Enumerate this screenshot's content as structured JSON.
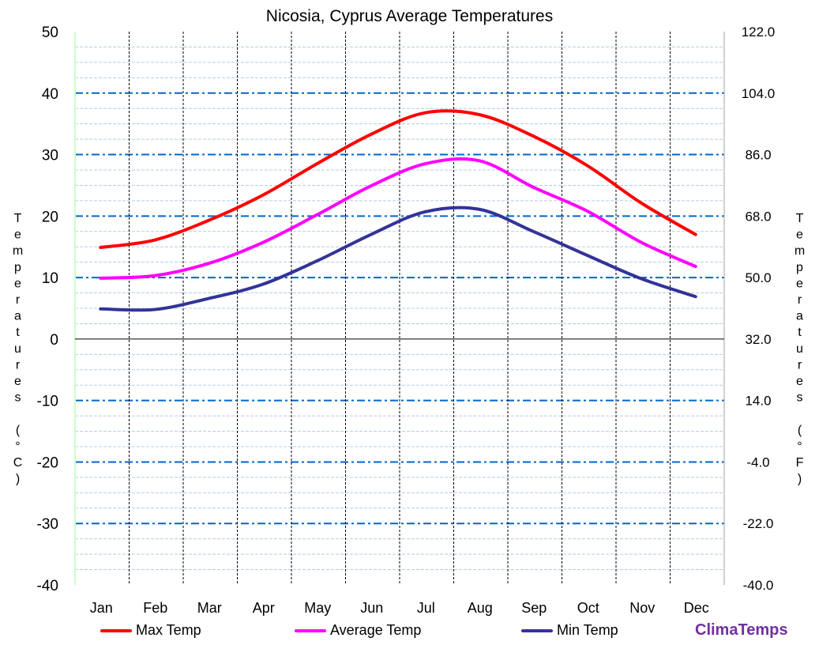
{
  "chart_data": {
    "type": "line",
    "title": "Nicosia, Cyprus Average Temperatures",
    "ylabel": "Temperatures (°C)",
    "ylabel_right": "Temperatures (°F)",
    "categories": [
      "Jan",
      "Feb",
      "Mar",
      "Apr",
      "May",
      "Jun",
      "Jul",
      "Aug",
      "Sep",
      "Oct",
      "Nov",
      "Dec"
    ],
    "ylim": [
      -40,
      50
    ],
    "ylim_right": [
      -40,
      122
    ],
    "yticks": [
      "50",
      "40",
      "30",
      "20",
      "10",
      "0",
      "-10",
      "-20",
      "-30",
      "-40"
    ],
    "yticks_right": [
      "122.0",
      "104.0",
      "86.0",
      "68.0",
      "50.0",
      "32.0",
      "14.0",
      "-4.0",
      "-22.0",
      "-40.0"
    ],
    "grid": true,
    "legend_placement": "bottom",
    "series": [
      {
        "name": "Max Temp",
        "color": "#ff0000",
        "values": [
          14.9,
          16.1,
          19.3,
          23.4,
          28.5,
          33.3,
          36.8,
          36.5,
          33.0,
          28.2,
          22.1,
          17.0
        ]
      },
      {
        "name": "Average Temp",
        "color": "#ff00ff",
        "values": [
          9.9,
          10.3,
          12.3,
          15.7,
          20.2,
          24.9,
          28.5,
          29.0,
          24.7,
          20.8,
          15.7,
          11.8
        ]
      },
      {
        "name": "Min Temp",
        "color": "#333399",
        "values": [
          4.9,
          4.8,
          6.6,
          8.9,
          12.7,
          17.0,
          20.7,
          21.1,
          17.5,
          13.6,
          9.8,
          6.9
        ]
      }
    ]
  },
  "brand": "ClimaTemps"
}
